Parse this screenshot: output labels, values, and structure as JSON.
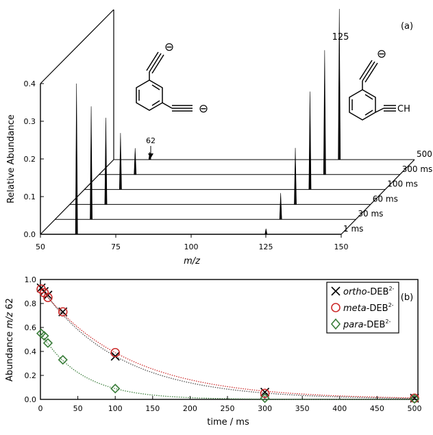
{
  "chart_data": [
    {
      "type": "line",
      "panel": "(a)",
      "subtype": "stacked-waterfall-mass-spectra",
      "xlabel": "m/z",
      "ylabel": "Relative Abundance",
      "xlim": [
        50,
        150
      ],
      "ylim": [
        0,
        0.4
      ],
      "x_ticks": [
        50,
        75,
        100,
        125,
        150
      ],
      "y_ticks": [
        0.0,
        0.1,
        0.2,
        0.3,
        0.4
      ],
      "series": [
        {
          "name": "1 ms",
          "peaks": [
            {
              "mz": 62,
              "abundance": 0.4
            },
            {
              "mz": 125,
              "abundance": 0.015
            }
          ]
        },
        {
          "name": "30 ms",
          "peaks": [
            {
              "mz": 62,
              "abundance": 0.3
            },
            {
              "mz": 125,
              "abundance": 0.07
            }
          ]
        },
        {
          "name": "60 ms",
          "peaks": [
            {
              "mz": 62,
              "abundance": 0.23
            },
            {
              "mz": 125,
              "abundance": 0.15
            }
          ]
        },
        {
          "name": "100 ms",
          "peaks": [
            {
              "mz": 62,
              "abundance": 0.15
            },
            {
              "mz": 125,
              "abundance": 0.26
            }
          ]
        },
        {
          "name": "300 ms",
          "peaks": [
            {
              "mz": 62,
              "abundance": 0.07
            },
            {
              "mz": 125,
              "abundance": 0.33
            }
          ]
        },
        {
          "name": "500 ms",
          "peaks": [
            {
              "mz": 62,
              "abundance": 0.02
            },
            {
              "mz": 125,
              "abundance": 0.4
            }
          ]
        }
      ],
      "annotations": [
        "62",
        "125"
      ],
      "molecule_charge_symbol": "⊖",
      "molecule_right_label": "CH",
      "colors": {
        "peaks": "#000000"
      }
    },
    {
      "type": "scatter",
      "panel": "(b)",
      "xlabel": "time / ms",
      "ylabel_parts": [
        "Abundance ",
        "m/z",
        " 62"
      ],
      "xlim": [
        0,
        500
      ],
      "ylim": [
        0,
        1.0
      ],
      "x_ticks": [
        0,
        50,
        100,
        150,
        200,
        250,
        300,
        350,
        400,
        450,
        500
      ],
      "y_ticks": [
        0.0,
        0.2,
        0.4,
        0.6,
        0.8,
        1.0
      ],
      "legend_position": "top-right",
      "series": [
        {
          "name_italic": "ortho",
          "name_rest": "-DEB",
          "sup": "2-",
          "marker": "x",
          "color": "#000000",
          "x": [
            1,
            5,
            10,
            30,
            100,
            300,
            500
          ],
          "y": [
            0.93,
            0.9,
            0.87,
            0.73,
            0.36,
            0.06,
            0.01
          ],
          "fit_color": "#4d4d4d"
        },
        {
          "name_italic": "meta",
          "name_rest": "-DEB",
          "sup": "2-",
          "marker": "circle",
          "color": "#cc2b2b",
          "x": [
            1,
            5,
            10,
            30,
            100,
            300,
            500
          ],
          "y": [
            0.92,
            0.89,
            0.85,
            0.73,
            0.39,
            0.05,
            0.01
          ],
          "fit_color": "#cc2b2b"
        },
        {
          "name_italic": "para",
          "name_rest": "-DEB",
          "sup": "2-",
          "marker": "diamond",
          "color": "#3a7d3a",
          "x": [
            1,
            5,
            10,
            30,
            100,
            300,
            500
          ],
          "y": [
            0.55,
            0.53,
            0.47,
            0.33,
            0.09,
            0.01,
            0.005
          ],
          "fit_color": "#3a7d3a"
        }
      ]
    }
  ]
}
